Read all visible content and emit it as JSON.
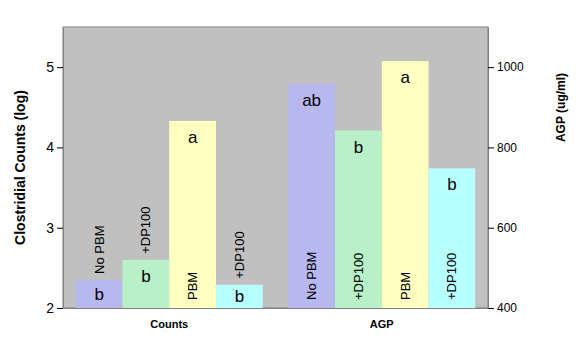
{
  "chart_data": {
    "type": "bar",
    "y_label": "Clostridial Counts (log)",
    "y2_label": "AGP (ug/ml)",
    "categories": [
      "Counts",
      "AGP"
    ],
    "ylim": [
      2,
      5.5
    ],
    "yticks": [
      2,
      3,
      4,
      5
    ],
    "y2lim": [
      400,
      1100
    ],
    "y2ticks": [
      400,
      600,
      800,
      1000
    ],
    "grid": false,
    "series": [
      {
        "name": "No PBM",
        "color": "#b8b8f0",
        "axis": "y",
        "values": [
          2.35,
          null
        ],
        "letters": [
          "b",
          null
        ]
      },
      {
        "name": "+DP100",
        "color": "#b8f0c8",
        "axis": "y",
        "values": [
          2.6,
          null
        ],
        "letters": [
          "b",
          null
        ]
      },
      {
        "name": "PBM",
        "color": "#ffffc0",
        "axis": "y",
        "values": [
          4.33,
          null
        ],
        "letters": [
          "a",
          null
        ]
      },
      {
        "name": "+DP100",
        "color": "#b8ffff",
        "axis": "y",
        "values": [
          2.29,
          null
        ],
        "letters": [
          "b",
          null
        ]
      },
      {
        "name": "No PBM",
        "color": "#b8b8f0",
        "axis": "y2",
        "values": [
          null,
          958
        ],
        "letters": [
          null,
          "ab"
        ]
      },
      {
        "name": "+DP100",
        "color": "#b8f0c8",
        "axis": "y2",
        "values": [
          null,
          842
        ],
        "letters": [
          null,
          "b"
        ]
      },
      {
        "name": "PBM",
        "color": "#ffffc0",
        "axis": "y2",
        "values": [
          null,
          1015
        ],
        "letters": [
          null,
          "a"
        ]
      },
      {
        "name": "+DP100",
        "color": "#b8ffff",
        "axis": "y2",
        "values": [
          null,
          748
        ],
        "letters": [
          null,
          "b"
        ]
      }
    ]
  }
}
